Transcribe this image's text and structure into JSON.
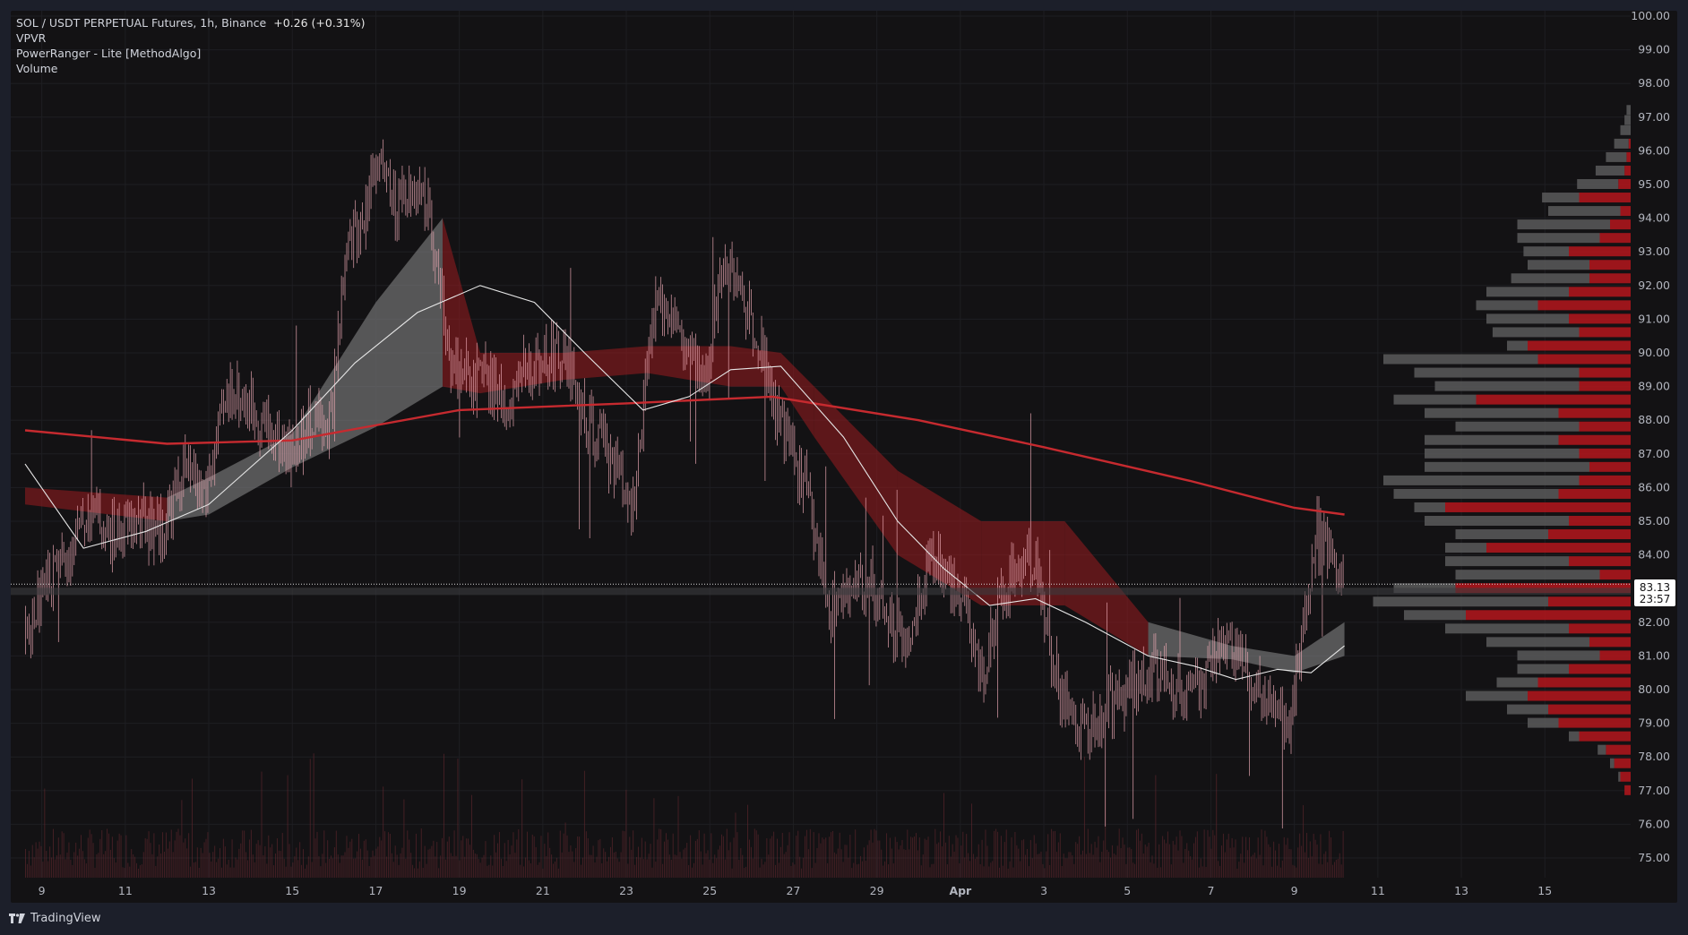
{
  "legend": {
    "symbol": "SOL / USDT PERPETUAL Futures, 1h, Binance",
    "change": "+0.26 (+0.31%)",
    "indicators": [
      "VPVR",
      "PowerRanger - Lite [MethodAlgo]",
      "Volume"
    ]
  },
  "price_label": {
    "price": "83.13",
    "countdown": "23:57"
  },
  "branding": {
    "logo_icon": "tradingview-logo-icon",
    "name": "TradingView"
  },
  "colors": {
    "background": "#131214",
    "candle": "#e8a6b0",
    "ribbon_red": "#9b1b1f",
    "ribbon_gray": "#8e8e8e",
    "ma200": "#c62a2f",
    "ma_white": "#e6e6e6",
    "vp_red": "#b5161c",
    "vp_gray": "#5a5a5a"
  },
  "chart_data": {
    "type": "candlestick",
    "title": "SOL / USDT PERPETUAL Futures, 1h, Binance",
    "ylim": [
      74.5,
      100.2
    ],
    "y_ticks": [
      "100.00",
      "99.00",
      "98.00",
      "97.00",
      "96.00",
      "95.00",
      "94.00",
      "93.00",
      "92.00",
      "91.00",
      "90.00",
      "89.00",
      "88.00",
      "87.00",
      "86.00",
      "85.00",
      "84.00",
      "83.00",
      "82.00",
      "81.00",
      "80.00",
      "79.00",
      "78.00",
      "77.00",
      "76.00",
      "75.00"
    ],
    "x_ticks": [
      "9",
      "11",
      "13",
      "15",
      "17",
      "19",
      "21",
      "23",
      "25",
      "27",
      "29",
      "Apr",
      "3",
      "5",
      "7",
      "9",
      "11",
      "13",
      "15"
    ],
    "last_price": 83.13,
    "price_path": [
      {
        "d": 8.6,
        "p": 81.5
      },
      {
        "d": 9.0,
        "p": 83.0
      },
      {
        "d": 9.6,
        "p": 84.0
      },
      {
        "d": 10.2,
        "p": 85.5
      },
      {
        "d": 10.6,
        "p": 84.5
      },
      {
        "d": 11.3,
        "p": 85.0
      },
      {
        "d": 11.9,
        "p": 84.8
      },
      {
        "d": 12.4,
        "p": 86.5
      },
      {
        "d": 12.9,
        "p": 85.8
      },
      {
        "d": 13.5,
        "p": 89.0
      },
      {
        "d": 13.9,
        "p": 88.5
      },
      {
        "d": 14.3,
        "p": 88.0
      },
      {
        "d": 14.9,
        "p": 87.0
      },
      {
        "d": 15.5,
        "p": 88.0
      },
      {
        "d": 15.9,
        "p": 87.8
      },
      {
        "d": 16.3,
        "p": 93.0
      },
      {
        "d": 16.7,
        "p": 94.0
      },
      {
        "d": 17.0,
        "p": 96.0
      },
      {
        "d": 17.5,
        "p": 94.0
      },
      {
        "d": 17.9,
        "p": 95.0
      },
      {
        "d": 18.3,
        "p": 94.2
      },
      {
        "d": 18.7,
        "p": 90.0
      },
      {
        "d": 19.2,
        "p": 89.5
      },
      {
        "d": 19.7,
        "p": 89.0
      },
      {
        "d": 20.1,
        "p": 88.5
      },
      {
        "d": 20.6,
        "p": 89.5
      },
      {
        "d": 21.1,
        "p": 90.0
      },
      {
        "d": 21.6,
        "p": 89.8
      },
      {
        "d": 22.0,
        "p": 88.0
      },
      {
        "d": 22.6,
        "p": 87.0
      },
      {
        "d": 23.2,
        "p": 85.5
      },
      {
        "d": 23.6,
        "p": 91.0
      },
      {
        "d": 24.0,
        "p": 91.5
      },
      {
        "d": 24.4,
        "p": 90.0
      },
      {
        "d": 24.9,
        "p": 89.0
      },
      {
        "d": 25.3,
        "p": 93.0
      },
      {
        "d": 25.8,
        "p": 91.5
      },
      {
        "d": 26.2,
        "p": 90.5
      },
      {
        "d": 26.6,
        "p": 88.0
      },
      {
        "d": 27.0,
        "p": 87.0
      },
      {
        "d": 27.4,
        "p": 85.5
      },
      {
        "d": 27.8,
        "p": 82.5
      },
      {
        "d": 28.3,
        "p": 82.8
      },
      {
        "d": 28.8,
        "p": 83.2
      },
      {
        "d": 29.3,
        "p": 82.0
      },
      {
        "d": 29.8,
        "p": 81.5
      },
      {
        "d": 30.2,
        "p": 84.0
      },
      {
        "d": 30.6,
        "p": 83.5
      },
      {
        "d": 31.1,
        "p": 82.5
      },
      {
        "d": 31.5,
        "p": 80.0
      },
      {
        "d": 31.9,
        "p": 82.5
      },
      {
        "d": 32.3,
        "p": 83.5
      },
      {
        "d": 32.8,
        "p": 84.0
      },
      {
        "d": 33.2,
        "p": 81.0
      },
      {
        "d": 33.6,
        "p": 79.0
      },
      {
        "d": 34.0,
        "p": 78.8
      },
      {
        "d": 34.5,
        "p": 79.5
      },
      {
        "d": 35.0,
        "p": 80.0
      },
      {
        "d": 35.4,
        "p": 80.3
      },
      {
        "d": 35.8,
        "p": 80.6
      },
      {
        "d": 36.3,
        "p": 80.0
      },
      {
        "d": 36.8,
        "p": 79.8
      },
      {
        "d": 37.2,
        "p": 81.5
      },
      {
        "d": 37.6,
        "p": 81.0
      },
      {
        "d": 38.0,
        "p": 80.0
      },
      {
        "d": 38.4,
        "p": 79.5
      },
      {
        "d": 38.9,
        "p": 79.0
      },
      {
        "d": 39.2,
        "p": 82.0
      },
      {
        "d": 39.5,
        "p": 84.5
      },
      {
        "d": 39.9,
        "p": 84.2
      },
      {
        "d": 40.2,
        "p": 83.13
      }
    ],
    "series": [
      {
        "type": "line",
        "points": [
          {
            "d": 8.6,
            "p": 87.7
          },
          {
            "d": 12.0,
            "p": 87.3
          },
          {
            "d": 15.0,
            "p": 87.4
          },
          {
            "d": 19.0,
            "p": 88.3
          },
          {
            "d": 23.0,
            "p": 88.5
          },
          {
            "d": 26.5,
            "p": 88.7
          },
          {
            "d": 30.0,
            "p": 88.0
          },
          {
            "d": 33.0,
            "p": 87.2
          },
          {
            "d": 36.5,
            "p": 86.2
          },
          {
            "d": 39.0,
            "p": 85.4
          },
          {
            "d": 40.2,
            "p": 85.2
          }
        ]
      },
      {
        "type": "line",
        "points": [
          {
            "d": 8.6,
            "p": 86.7
          },
          {
            "d": 10.0,
            "p": 84.2
          },
          {
            "d": 11.5,
            "p": 84.7
          },
          {
            "d": 13.0,
            "p": 85.5
          },
          {
            "d": 15.0,
            "p": 87.7
          },
          {
            "d": 16.5,
            "p": 89.7
          },
          {
            "d": 18.0,
            "p": 91.2
          },
          {
            "d": 19.5,
            "p": 92.0
          },
          {
            "d": 20.8,
            "p": 91.5
          },
          {
            "d": 22.0,
            "p": 90.0
          },
          {
            "d": 23.4,
            "p": 88.3
          },
          {
            "d": 24.5,
            "p": 88.7
          },
          {
            "d": 25.5,
            "p": 89.5
          },
          {
            "d": 26.7,
            "p": 89.6
          },
          {
            "d": 28.2,
            "p": 87.5
          },
          {
            "d": 29.5,
            "p": 85.0
          },
          {
            "d": 30.6,
            "p": 83.6
          },
          {
            "d": 31.7,
            "p": 82.5
          },
          {
            "d": 32.8,
            "p": 82.7
          },
          {
            "d": 34.0,
            "p": 82.0
          },
          {
            "d": 35.5,
            "p": 81.0
          },
          {
            "d": 36.6,
            "p": 80.7
          },
          {
            "d": 37.6,
            "p": 80.3
          },
          {
            "d": 38.6,
            "p": 80.6
          },
          {
            "d": 39.4,
            "p": 80.5
          },
          {
            "d": 40.2,
            "p": 81.3
          }
        ]
      }
    ],
    "ribbon": [
      {
        "d": 8.6,
        "a": 86.0,
        "b": 85.5,
        "color": "red"
      },
      {
        "d": 12.0,
        "a": 85.7,
        "b": 85.0,
        "color": "red"
      },
      {
        "d": 13.0,
        "a": 86.3,
        "b": 85.2,
        "color": "gray"
      },
      {
        "d": 15.0,
        "a": 87.6,
        "b": 86.6,
        "color": "gray"
      },
      {
        "d": 17.0,
        "a": 91.5,
        "b": 87.8,
        "color": "gray"
      },
      {
        "d": 18.6,
        "a": 94.0,
        "b": 89.0,
        "color": "gray"
      },
      {
        "d": 19.5,
        "a": 90.0,
        "b": 88.8,
        "color": "red"
      },
      {
        "d": 21.5,
        "a": 90.0,
        "b": 89.2,
        "color": "red"
      },
      {
        "d": 23.5,
        "a": 90.2,
        "b": 89.4,
        "color": "red"
      },
      {
        "d": 25.5,
        "a": 90.2,
        "b": 89.0,
        "color": "red"
      },
      {
        "d": 26.7,
        "a": 90.0,
        "b": 89.0,
        "color": "red"
      },
      {
        "d": 27.5,
        "a": 89.0,
        "b": 87.5,
        "color": "red"
      },
      {
        "d": 29.5,
        "a": 86.5,
        "b": 84.0,
        "color": "red"
      },
      {
        "d": 31.5,
        "a": 85.0,
        "b": 82.5,
        "color": "red"
      },
      {
        "d": 33.5,
        "a": 85.0,
        "b": 82.5,
        "color": "red"
      },
      {
        "d": 35.5,
        "a": 82.0,
        "b": 81.0,
        "color": "red"
      },
      {
        "d": 37.5,
        "a": 81.3,
        "b": 80.9,
        "color": "gray"
      },
      {
        "d": 39.0,
        "a": 81.0,
        "b": 80.5,
        "color": "gray"
      },
      {
        "d": 40.2,
        "a": 82.0,
        "b": 81.0,
        "color": "gray"
      }
    ],
    "volume_profile": [
      {
        "p": 97.2,
        "gray": 2,
        "red": 0
      },
      {
        "p": 96.9,
        "gray": 3,
        "red": 0
      },
      {
        "p": 96.6,
        "gray": 5,
        "red": 0
      },
      {
        "p": 96.2,
        "gray": 7,
        "red": 1
      },
      {
        "p": 95.8,
        "gray": 10,
        "red": 2
      },
      {
        "p": 95.4,
        "gray": 14,
        "red": 3
      },
      {
        "p": 95.0,
        "gray": 20,
        "red": 6
      },
      {
        "p": 94.6,
        "gray": 18,
        "red": 25
      },
      {
        "p": 94.2,
        "gray": 35,
        "red": 5
      },
      {
        "p": 93.8,
        "gray": 45,
        "red": 10
      },
      {
        "p": 93.4,
        "gray": 40,
        "red": 15
      },
      {
        "p": 93.0,
        "gray": 22,
        "red": 30
      },
      {
        "p": 92.6,
        "gray": 30,
        "red": 20
      },
      {
        "p": 92.2,
        "gray": 38,
        "red": 20
      },
      {
        "p": 91.8,
        "gray": 40,
        "red": 30
      },
      {
        "p": 91.4,
        "gray": 30,
        "red": 45
      },
      {
        "p": 91.0,
        "gray": 40,
        "red": 30
      },
      {
        "p": 90.6,
        "gray": 42,
        "red": 25
      },
      {
        "p": 90.2,
        "gray": 10,
        "red": 50
      },
      {
        "p": 89.8,
        "gray": 75,
        "red": 45
      },
      {
        "p": 89.4,
        "gray": 80,
        "red": 25
      },
      {
        "p": 89.0,
        "gray": 70,
        "red": 25
      },
      {
        "p": 88.6,
        "gray": 40,
        "red": 75
      },
      {
        "p": 88.2,
        "gray": 65,
        "red": 35
      },
      {
        "p": 87.8,
        "gray": 60,
        "red": 25
      },
      {
        "p": 87.4,
        "gray": 65,
        "red": 35
      },
      {
        "p": 87.0,
        "gray": 75,
        "red": 25
      },
      {
        "p": 86.6,
        "gray": 80,
        "red": 20
      },
      {
        "p": 86.2,
        "gray": 95,
        "red": 25
      },
      {
        "p": 85.8,
        "gray": 80,
        "red": 35
      },
      {
        "p": 85.4,
        "gray": 15,
        "red": 90
      },
      {
        "p": 85.0,
        "gray": 70,
        "red": 30
      },
      {
        "p": 84.6,
        "gray": 45,
        "red": 40
      },
      {
        "p": 84.2,
        "gray": 20,
        "red": 70
      },
      {
        "p": 83.8,
        "gray": 60,
        "red": 30
      },
      {
        "p": 83.4,
        "gray": 70,
        "red": 15
      },
      {
        "p": 83.0,
        "gray": 30,
        "red": 85
      },
      {
        "p": 82.6,
        "gray": 85,
        "red": 40
      },
      {
        "p": 82.2,
        "gray": 30,
        "red": 80
      },
      {
        "p": 81.8,
        "gray": 60,
        "red": 30
      },
      {
        "p": 81.4,
        "gray": 50,
        "red": 20
      },
      {
        "p": 81.0,
        "gray": 40,
        "red": 15
      },
      {
        "p": 80.6,
        "gray": 25,
        "red": 30
      },
      {
        "p": 80.2,
        "gray": 20,
        "red": 45
      },
      {
        "p": 79.8,
        "gray": 30,
        "red": 50
      },
      {
        "p": 79.4,
        "gray": 20,
        "red": 40
      },
      {
        "p": 79.0,
        "gray": 15,
        "red": 35
      },
      {
        "p": 78.6,
        "gray": 5,
        "red": 25
      },
      {
        "p": 78.2,
        "gray": 4,
        "red": 12
      },
      {
        "p": 77.8,
        "gray": 2,
        "red": 8
      },
      {
        "p": 77.4,
        "gray": 1,
        "red": 5
      },
      {
        "p": 77.0,
        "gray": 0,
        "red": 3
      }
    ]
  }
}
